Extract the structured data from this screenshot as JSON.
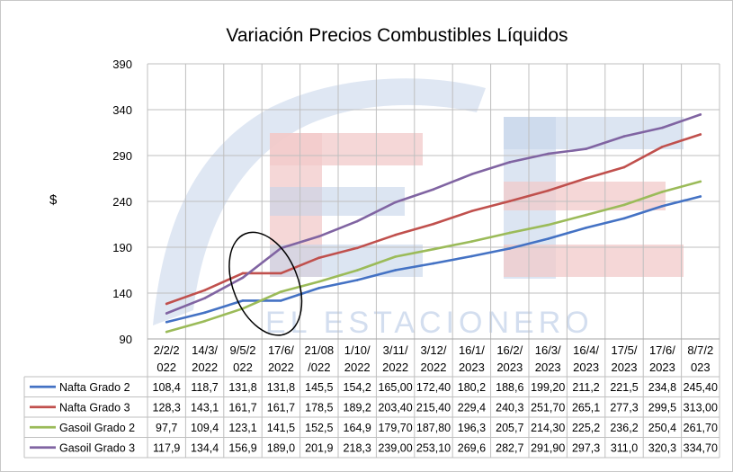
{
  "chart_data": {
    "type": "line",
    "title": "Variación Precios Combustibles Líquidos",
    "ylabel": "$",
    "ylim": [
      90,
      390
    ],
    "yticks": [
      90,
      140,
      190,
      240,
      290,
      340,
      390
    ],
    "grid": true,
    "legend": "table-below",
    "categories": [
      [
        "2/2/2",
        "022"
      ],
      [
        "14/3/",
        "2022"
      ],
      [
        "9/5/2",
        "022"
      ],
      [
        "17/6/",
        "2022"
      ],
      [
        "21/08",
        "/022"
      ],
      [
        "1/10/",
        "2022"
      ],
      [
        "3/11/",
        "2022"
      ],
      [
        "3/12/",
        "2022"
      ],
      [
        "16/1/",
        "2023"
      ],
      [
        "16/2/",
        "2023"
      ],
      [
        "16/3/",
        "2023"
      ],
      [
        "16/4/",
        "2023"
      ],
      [
        "17/5/",
        "2023"
      ],
      [
        "17/6/",
        "2023"
      ],
      [
        "8/7/2",
        "023"
      ]
    ],
    "series": [
      {
        "name": "Nafta Grado 2",
        "color": "#4472c4",
        "values": [
          108.4,
          118.7,
          131.8,
          131.8,
          145.5,
          154.2,
          165.0,
          172.4,
          180.2,
          188.6,
          199.2,
          211.2,
          221.5,
          234.8,
          245.4
        ],
        "labels": [
          "108,4",
          "118,7",
          "131,8",
          "131,8",
          "145,5",
          "154,2",
          "165,00",
          "172,40",
          "180,2",
          "188,6",
          "199,20",
          "211,2",
          "221,5",
          "234,8",
          "245,40"
        ]
      },
      {
        "name": "Nafta Grado 3",
        "color": "#c0504d",
        "values": [
          128.3,
          143.1,
          161.7,
          161.7,
          178.5,
          189.2,
          203.4,
          215.4,
          229.4,
          240.3,
          251.7,
          265.1,
          277.3,
          299.5,
          313.0
        ],
        "labels": [
          "128,3",
          "143,1",
          "161,7",
          "161,7",
          "178,5",
          "189,2",
          "203,40",
          "215,40",
          "229,4",
          "240,3",
          "251,70",
          "265,1",
          "277,3",
          "299,5",
          "313,00"
        ]
      },
      {
        "name": "Gasoil Grado 2",
        "color": "#9bbb59",
        "values": [
          97.7,
          109.4,
          123.1,
          141.5,
          152.5,
          164.9,
          179.7,
          187.8,
          196.3,
          205.7,
          214.3,
          225.2,
          236.2,
          250.4,
          261.7
        ],
        "labels": [
          "97,7",
          "109,4",
          "123,1",
          "141,5",
          "152,5",
          "164,9",
          "179,70",
          "187,80",
          "196,3",
          "205,7",
          "214,30",
          "225,2",
          "236,2",
          "250,4",
          "261,70"
        ]
      },
      {
        "name": "Gasoil Grado 3",
        "color": "#8064a2",
        "values": [
          117.9,
          134.4,
          156.9,
          189.0,
          201.9,
          218.3,
          239.0,
          253.1,
          269.6,
          282.7,
          291.9,
          297.3,
          311.0,
          320.3,
          334.7
        ],
        "labels": [
          "117,9",
          "134,4",
          "156,9",
          "189,0",
          "201,9",
          "218,3",
          "239,00",
          "253,10",
          "269,6",
          "282,7",
          "291,90",
          "297,3",
          "311,0",
          "320,3",
          "334,70"
        ]
      }
    ],
    "annotation": {
      "shape": "ellipse",
      "around_categories": [
        2,
        3
      ]
    },
    "watermark": {
      "text": "EL ESTACIONERO",
      "colors": [
        "#c5d3ea",
        "#f2c9c9"
      ]
    }
  }
}
